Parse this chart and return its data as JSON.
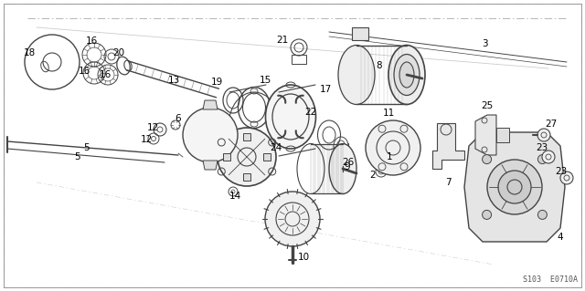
{
  "bg_color": "#ffffff",
  "diagram_code": "S103  E0710A",
  "figsize": [
    6.4,
    3.19
  ],
  "dpi": 100,
  "gray": "#444444",
  "lightgray": "#999999",
  "darkgray": "#222222",
  "border_color": "#888888"
}
